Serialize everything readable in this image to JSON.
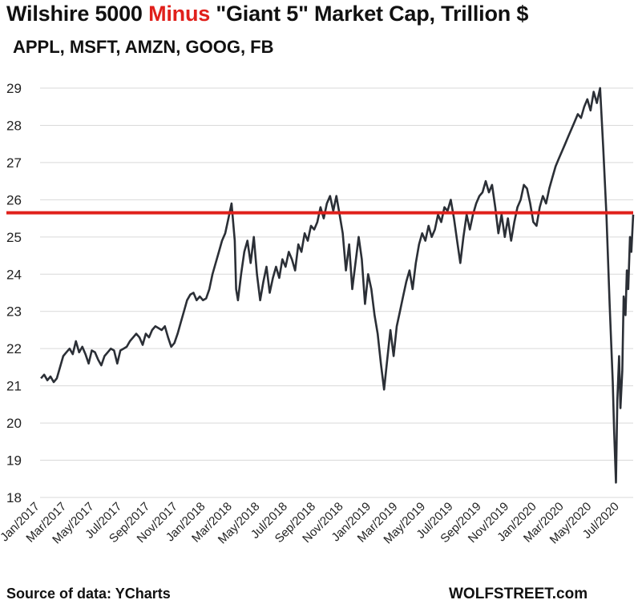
{
  "header": {
    "title_part1": "Wilshire 5000 ",
    "title_highlight": "Minus",
    "title_part2": " \"Giant 5\" Market Cap, Trillion $",
    "subtitle": "APPL, MSFT, AMZN, GOOG, FB"
  },
  "footer": {
    "source": "Source of data: YCharts",
    "brand": "WOLFSTREET.com"
  },
  "colors": {
    "line": "#2b2f36",
    "reference": "#e0201b",
    "highlight": "#e0201b",
    "grid": "#d9d9d9"
  },
  "chart_data": {
    "type": "line",
    "title": "Wilshire 5000 Minus \"Giant 5\" Market Cap, Trillion $",
    "subtitle": "APPL, MSFT, AMZN, GOOG, FB",
    "ylim": [
      18,
      29
    ],
    "yticks": [
      18,
      19,
      20,
      21,
      22,
      23,
      24,
      25,
      26,
      27,
      28,
      29
    ],
    "xlim": [
      "2017-01-01",
      "2020-07-31"
    ],
    "xticks": [
      {
        "date": "2017-01-01",
        "label": "Jan/2017"
      },
      {
        "date": "2017-03-01",
        "label": "Mar/2017"
      },
      {
        "date": "2017-05-01",
        "label": "May/2017"
      },
      {
        "date": "2017-07-01",
        "label": "Jul/2017"
      },
      {
        "date": "2017-09-01",
        "label": "Sep/2017"
      },
      {
        "date": "2017-11-01",
        "label": "Nov/2017"
      },
      {
        "date": "2018-01-01",
        "label": "Jan/2018"
      },
      {
        "date": "2018-03-01",
        "label": "Mar/2018"
      },
      {
        "date": "2018-05-01",
        "label": "May/2018"
      },
      {
        "date": "2018-07-01",
        "label": "Jul/2018"
      },
      {
        "date": "2018-09-01",
        "label": "Sep/2018"
      },
      {
        "date": "2018-11-01",
        "label": "Nov/2018"
      },
      {
        "date": "2019-01-01",
        "label": "Jan/2019"
      },
      {
        "date": "2019-03-01",
        "label": "Mar/2019"
      },
      {
        "date": "2019-05-01",
        "label": "May/2019"
      },
      {
        "date": "2019-07-01",
        "label": "Jul/2019"
      },
      {
        "date": "2019-09-01",
        "label": "Sep/2019"
      },
      {
        "date": "2019-11-01",
        "label": "Nov/2019"
      },
      {
        "date": "2020-01-01",
        "label": "Jan/2020"
      },
      {
        "date": "2020-03-01",
        "label": "Mar/2020"
      },
      {
        "date": "2020-05-01",
        "label": "May/2020"
      },
      {
        "date": "2020-07-01",
        "label": "Jul/2020"
      }
    ],
    "grid": "horizontal",
    "reference_line": {
      "y": 25.65
    },
    "series": [
      {
        "points": [
          [
            "2017-01-03",
            21.2
          ],
          [
            "2017-01-10",
            21.3
          ],
          [
            "2017-01-17",
            21.15
          ],
          [
            "2017-01-24",
            21.25
          ],
          [
            "2017-01-31",
            21.1
          ],
          [
            "2017-02-07",
            21.2
          ],
          [
            "2017-02-14",
            21.5
          ],
          [
            "2017-02-21",
            21.8
          ],
          [
            "2017-02-28",
            21.9
          ],
          [
            "2017-03-07",
            22.0
          ],
          [
            "2017-03-14",
            21.85
          ],
          [
            "2017-03-21",
            22.2
          ],
          [
            "2017-03-28",
            21.9
          ],
          [
            "2017-04-04",
            22.05
          ],
          [
            "2017-04-11",
            21.85
          ],
          [
            "2017-04-18",
            21.6
          ],
          [
            "2017-04-25",
            21.95
          ],
          [
            "2017-05-02",
            21.9
          ],
          [
            "2017-05-09",
            21.7
          ],
          [
            "2017-05-16",
            21.55
          ],
          [
            "2017-05-23",
            21.8
          ],
          [
            "2017-05-30",
            21.9
          ],
          [
            "2017-06-06",
            22.0
          ],
          [
            "2017-06-13",
            21.95
          ],
          [
            "2017-06-20",
            21.6
          ],
          [
            "2017-06-27",
            21.95
          ],
          [
            "2017-07-04",
            22.0
          ],
          [
            "2017-07-11",
            22.05
          ],
          [
            "2017-07-18",
            22.2
          ],
          [
            "2017-07-25",
            22.3
          ],
          [
            "2017-08-01",
            22.4
          ],
          [
            "2017-08-08",
            22.3
          ],
          [
            "2017-08-15",
            22.1
          ],
          [
            "2017-08-22",
            22.4
          ],
          [
            "2017-08-29",
            22.3
          ],
          [
            "2017-09-05",
            22.5
          ],
          [
            "2017-09-12",
            22.6
          ],
          [
            "2017-09-19",
            22.55
          ],
          [
            "2017-09-26",
            22.5
          ],
          [
            "2017-10-03",
            22.6
          ],
          [
            "2017-10-10",
            22.3
          ],
          [
            "2017-10-17",
            22.05
          ],
          [
            "2017-10-24",
            22.15
          ],
          [
            "2017-10-31",
            22.4
          ],
          [
            "2017-11-07",
            22.7
          ],
          [
            "2017-11-14",
            23.0
          ],
          [
            "2017-11-21",
            23.3
          ],
          [
            "2017-11-28",
            23.45
          ],
          [
            "2017-12-05",
            23.5
          ],
          [
            "2017-12-12",
            23.3
          ],
          [
            "2017-12-19",
            23.4
          ],
          [
            "2017-12-26",
            23.3
          ],
          [
            "2018-01-02",
            23.35
          ],
          [
            "2018-01-09",
            23.6
          ],
          [
            "2018-01-16",
            24.0
          ],
          [
            "2018-01-23",
            24.3
          ],
          [
            "2018-01-30",
            24.6
          ],
          [
            "2018-02-06",
            24.9
          ],
          [
            "2018-02-13",
            25.1
          ],
          [
            "2018-02-20",
            25.5
          ],
          [
            "2018-02-27",
            25.9
          ],
          [
            "2018-03-06",
            24.9
          ],
          [
            "2018-03-09",
            23.6
          ],
          [
            "2018-03-13",
            23.3
          ],
          [
            "2018-03-20",
            24.0
          ],
          [
            "2018-03-27",
            24.6
          ],
          [
            "2018-04-03",
            24.9
          ],
          [
            "2018-04-10",
            24.3
          ],
          [
            "2018-04-17",
            25.0
          ],
          [
            "2018-04-24",
            24.0
          ],
          [
            "2018-05-01",
            23.3
          ],
          [
            "2018-05-08",
            23.8
          ],
          [
            "2018-05-15",
            24.2
          ],
          [
            "2018-05-22",
            23.5
          ],
          [
            "2018-05-29",
            23.9
          ],
          [
            "2018-06-05",
            24.2
          ],
          [
            "2018-06-12",
            23.9
          ],
          [
            "2018-06-19",
            24.4
          ],
          [
            "2018-06-26",
            24.2
          ],
          [
            "2018-07-03",
            24.6
          ],
          [
            "2018-07-10",
            24.4
          ],
          [
            "2018-07-17",
            24.1
          ],
          [
            "2018-07-24",
            24.8
          ],
          [
            "2018-07-31",
            24.6
          ],
          [
            "2018-08-07",
            25.1
          ],
          [
            "2018-08-14",
            24.9
          ],
          [
            "2018-08-21",
            25.3
          ],
          [
            "2018-08-28",
            25.2
          ],
          [
            "2018-09-04",
            25.4
          ],
          [
            "2018-09-11",
            25.8
          ],
          [
            "2018-09-18",
            25.5
          ],
          [
            "2018-09-25",
            25.9
          ],
          [
            "2018-10-02",
            26.1
          ],
          [
            "2018-10-09",
            25.7
          ],
          [
            "2018-10-16",
            26.1
          ],
          [
            "2018-10-23",
            25.6
          ],
          [
            "2018-10-30",
            25.1
          ],
          [
            "2018-11-06",
            24.1
          ],
          [
            "2018-11-13",
            24.8
          ],
          [
            "2018-11-20",
            23.6
          ],
          [
            "2018-11-27",
            24.3
          ],
          [
            "2018-12-04",
            25.0
          ],
          [
            "2018-12-11",
            24.4
          ],
          [
            "2018-12-18",
            23.2
          ],
          [
            "2018-12-25",
            24.0
          ],
          [
            "2019-01-01",
            23.6
          ],
          [
            "2019-01-08",
            22.9
          ],
          [
            "2019-01-15",
            22.4
          ],
          [
            "2019-01-22",
            21.6
          ],
          [
            "2019-01-29",
            20.9
          ],
          [
            "2019-02-05",
            21.7
          ],
          [
            "2019-02-12",
            22.5
          ],
          [
            "2019-02-19",
            21.8
          ],
          [
            "2019-02-26",
            22.6
          ],
          [
            "2019-03-05",
            23.0
          ],
          [
            "2019-03-12",
            23.4
          ],
          [
            "2019-03-19",
            23.8
          ],
          [
            "2019-03-26",
            24.1
          ],
          [
            "2019-04-02",
            23.6
          ],
          [
            "2019-04-09",
            24.3
          ],
          [
            "2019-04-16",
            24.8
          ],
          [
            "2019-04-23",
            25.1
          ],
          [
            "2019-04-30",
            24.9
          ],
          [
            "2019-05-07",
            25.3
          ],
          [
            "2019-05-14",
            25.0
          ],
          [
            "2019-05-21",
            25.2
          ],
          [
            "2019-05-28",
            25.6
          ],
          [
            "2019-06-04",
            25.4
          ],
          [
            "2019-06-11",
            25.8
          ],
          [
            "2019-06-18",
            25.7
          ],
          [
            "2019-06-25",
            26.0
          ],
          [
            "2019-07-02",
            25.5
          ],
          [
            "2019-07-09",
            24.9
          ],
          [
            "2019-07-16",
            24.3
          ],
          [
            "2019-07-23",
            25.0
          ],
          [
            "2019-07-30",
            25.6
          ],
          [
            "2019-08-06",
            25.2
          ],
          [
            "2019-08-13",
            25.6
          ],
          [
            "2019-08-20",
            25.9
          ],
          [
            "2019-08-27",
            26.1
          ],
          [
            "2019-09-03",
            26.2
          ],
          [
            "2019-09-10",
            26.5
          ],
          [
            "2019-09-17",
            26.2
          ],
          [
            "2019-09-24",
            26.4
          ],
          [
            "2019-10-01",
            25.8
          ],
          [
            "2019-10-08",
            25.1
          ],
          [
            "2019-10-15",
            25.6
          ],
          [
            "2019-10-22",
            25.0
          ],
          [
            "2019-10-29",
            25.5
          ],
          [
            "2019-11-05",
            24.9
          ],
          [
            "2019-11-12",
            25.4
          ],
          [
            "2019-11-19",
            25.8
          ],
          [
            "2019-11-26",
            26.0
          ],
          [
            "2019-12-03",
            26.4
          ],
          [
            "2019-12-10",
            26.3
          ],
          [
            "2019-12-17",
            25.9
          ],
          [
            "2019-12-24",
            25.4
          ],
          [
            "2019-12-31",
            25.3
          ],
          [
            "2020-01-07",
            25.8
          ],
          [
            "2020-01-14",
            26.1
          ],
          [
            "2020-01-21",
            25.9
          ],
          [
            "2020-01-28",
            26.3
          ],
          [
            "2020-02-04",
            26.6
          ],
          [
            "2020-02-11",
            26.9
          ],
          [
            "2020-02-18",
            27.1
          ],
          [
            "2020-02-25",
            27.3
          ],
          [
            "2020-03-03",
            27.5
          ],
          [
            "2020-03-10",
            27.7
          ],
          [
            "2020-03-17",
            27.9
          ],
          [
            "2020-03-24",
            28.1
          ],
          [
            "2020-03-31",
            28.3
          ],
          [
            "2020-04-07",
            28.2
          ],
          [
            "2020-04-14",
            28.5
          ],
          [
            "2020-04-21",
            28.7
          ],
          [
            "2020-04-28",
            28.4
          ],
          [
            "2020-05-05",
            28.9
          ],
          [
            "2020-05-12",
            28.6
          ],
          [
            "2020-05-19",
            29.0
          ],
          [
            "2020-05-26",
            27.4
          ],
          [
            "2020-06-02",
            25.6
          ],
          [
            "2020-06-09",
            23.2
          ],
          [
            "2020-06-16",
            21.1
          ],
          [
            "2020-06-19",
            19.8
          ],
          [
            "2020-06-23",
            18.4
          ],
          [
            "2020-06-26",
            20.6
          ],
          [
            "2020-06-30",
            21.8
          ],
          [
            "2020-07-03",
            20.4
          ],
          [
            "2020-07-07",
            21.4
          ],
          [
            "2020-07-10",
            23.4
          ],
          [
            "2020-07-14",
            22.9
          ],
          [
            "2020-07-17",
            24.1
          ],
          [
            "2020-07-20",
            23.6
          ],
          [
            "2020-07-24",
            25.0
          ],
          [
            "2020-07-27",
            24.6
          ],
          [
            "2020-07-31",
            25.6
          ]
        ]
      }
    ]
  }
}
